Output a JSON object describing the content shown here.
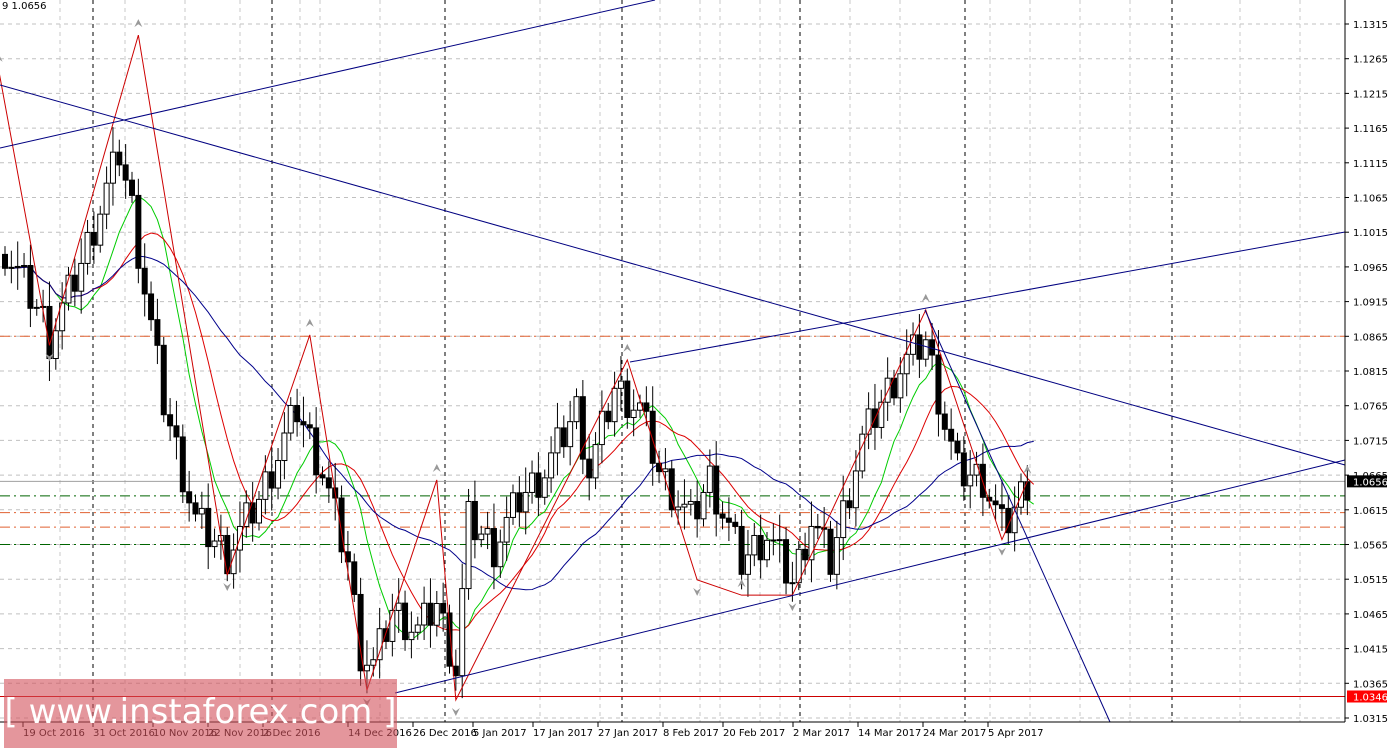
{
  "header": {
    "text": "9 1.0656"
  },
  "watermark": "[ www.instaforex.com ]",
  "colors": {
    "bull": "#ffffff",
    "bear": "#000000",
    "ma_fast": "#00cc00",
    "ma_mid": "#dd0000",
    "ma_slow": "#00008b",
    "zigzag": "#cc0000",
    "trendline": "#000080",
    "current_price_bg": "#000000",
    "low_level_bg": "#ff0000"
  },
  "chart_data": {
    "type": "candlestick",
    "symbol_price": "1.0656",
    "ylim": [
      1.0295,
      1.1345
    ],
    "y_ticks": [
      "1.1315",
      "1.1265",
      "1.1215",
      "1.1165",
      "1.1115",
      "1.1065",
      "1.1015",
      "1.0965",
      "1.0915",
      "1.0865",
      "1.0815",
      "1.0765",
      "1.0715",
      "1.0665",
      "1.0615",
      "1.0565",
      "1.0515",
      "1.0465",
      "1.0415",
      "1.0365",
      "1.0315"
    ],
    "x_ticks": [
      "19 Oct 2016",
      "31 Oct 2016",
      "10 Nov 2016",
      "22 Nov 2016",
      "2 Dec 2016",
      "14 Dec 2016",
      "26 Dec 2016",
      "5 Jan 2017",
      "17 Jan 2017",
      "27 Jan 2017",
      "8 Feb 2017",
      "20 Feb 2017",
      "2 Mar 2017",
      "14 Mar 2017",
      "24 Mar 2017",
      "5 Apr 2017"
    ],
    "current_price": "1.0656",
    "marked_low": "1.0346",
    "close_keypoints": [
      [
        0,
        1.099
      ],
      [
        6,
        1.089
      ],
      [
        7,
        1.086
      ],
      [
        12,
        1.097
      ],
      [
        18,
        1.113
      ],
      [
        20,
        1.105
      ],
      [
        21,
        1.099
      ],
      [
        25,
        1.077
      ],
      [
        30,
        1.06
      ],
      [
        35,
        1.055
      ],
      [
        40,
        1.063
      ],
      [
        46,
        1.076
      ],
      [
        50,
        1.067
      ],
      [
        54,
        1.054
      ],
      [
        56,
        1.041
      ],
      [
        58,
        1.039
      ],
      [
        61,
        1.047
      ],
      [
        65,
        1.044
      ],
      [
        68,
        1.048
      ],
      [
        71,
        1.0385
      ],
      [
        73,
        1.06
      ],
      [
        77,
        1.056
      ],
      [
        81,
        1.063
      ],
      [
        85,
        1.067
      ],
      [
        90,
        1.076
      ],
      [
        92,
        1.067
      ],
      [
        96,
        1.079
      ],
      [
        100,
        1.076
      ],
      [
        103,
        1.067
      ],
      [
        108,
        1.06
      ],
      [
        111,
        1.066
      ],
      [
        116,
        1.054
      ],
      [
        120,
        1.058
      ],
      [
        124,
        1.051
      ],
      [
        127,
        1.06
      ],
      [
        130,
        1.054
      ],
      [
        135,
        1.0715
      ],
      [
        138,
        1.077
      ],
      [
        141,
        1.082
      ],
      [
        145,
        1.086
      ],
      [
        148,
        1.074
      ],
      [
        150,
        1.067
      ],
      [
        154,
        1.066
      ],
      [
        157,
        1.059
      ],
      [
        158,
        1.06
      ],
      [
        161,
        1.0656
      ]
    ],
    "zigzag": [
      [
        -1,
        1.1249
      ],
      [
        7,
        1.0852
      ],
      [
        21,
        1.1299
      ],
      [
        35,
        1.0521
      ],
      [
        48,
        1.0867
      ],
      [
        57,
        1.0355
      ],
      [
        68,
        1.0658
      ],
      [
        71,
        1.0341
      ],
      [
        98,
        1.0831
      ],
      [
        109,
        1.0514
      ],
      [
        116,
        1.0492
      ],
      [
        124,
        1.0492
      ],
      [
        145,
        1.0903
      ],
      [
        157,
        1.0572
      ],
      [
        161,
        1.0656
      ]
    ],
    "horizontal_levels": [
      {
        "price": 1.0865,
        "style": "dashdot",
        "color": "#e06030"
      },
      {
        "price": 1.0635,
        "style": "dashdot",
        "color": "#006400"
      },
      {
        "price": 1.0611,
        "style": "dashdot",
        "color": "#e06030"
      },
      {
        "price": 1.059,
        "style": "dashdot",
        "color": "#e06030"
      },
      {
        "price": 1.0565,
        "style": "dashdot",
        "color": "#006400"
      },
      {
        "price": 1.0346,
        "style": "solid",
        "color": "#cc0000"
      },
      {
        "price": 1.0656,
        "style": "solid",
        "color": "#a0a0a0"
      }
    ],
    "moving_averages": [
      {
        "period": 8,
        "color": "#00cc00"
      },
      {
        "period": 14,
        "color": "#dd0000"
      },
      {
        "period": 30,
        "color": "#00008b"
      }
    ]
  }
}
